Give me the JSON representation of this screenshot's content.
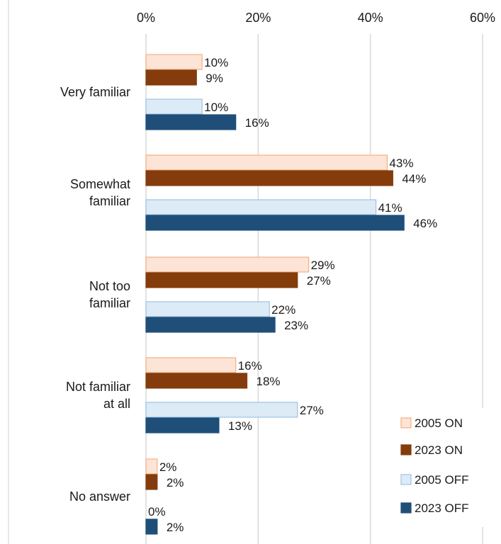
{
  "chart_data": {
    "type": "bar",
    "orientation": "horizontal",
    "categories": [
      [
        "Very familiar"
      ],
      [
        "Somewhat",
        "familiar"
      ],
      [
        "Not too",
        "familiar"
      ],
      [
        "Not familiar",
        "at all"
      ],
      [
        "No answer"
      ]
    ],
    "series": [
      {
        "name": "2005 ON",
        "color": "#fce4d6",
        "stroke": "#f4b183",
        "values": [
          10,
          43,
          29,
          16,
          2
        ]
      },
      {
        "name": "2023 ON",
        "color": "#843c0c",
        "stroke": "#843c0c",
        "values": [
          9,
          44,
          27,
          18,
          2
        ]
      },
      {
        "name": "2005 OFF",
        "color": "#ddebf7",
        "stroke": "#9dc3e6",
        "values": [
          10,
          41,
          22,
          27,
          0
        ]
      },
      {
        "name": "2023 OFF",
        "color": "#1f4e79",
        "stroke": "#1f4e79",
        "values": [
          16,
          46,
          23,
          13,
          2
        ]
      }
    ],
    "x_ticks": [
      "0%",
      "20%",
      "40%",
      "60%"
    ],
    "xlim": [
      0,
      60
    ],
    "x_axis_position": "top",
    "value_suffix": "%",
    "grid": true,
    "legend_position": "bottom-right",
    "title": "",
    "xlabel": "",
    "ylabel": ""
  }
}
